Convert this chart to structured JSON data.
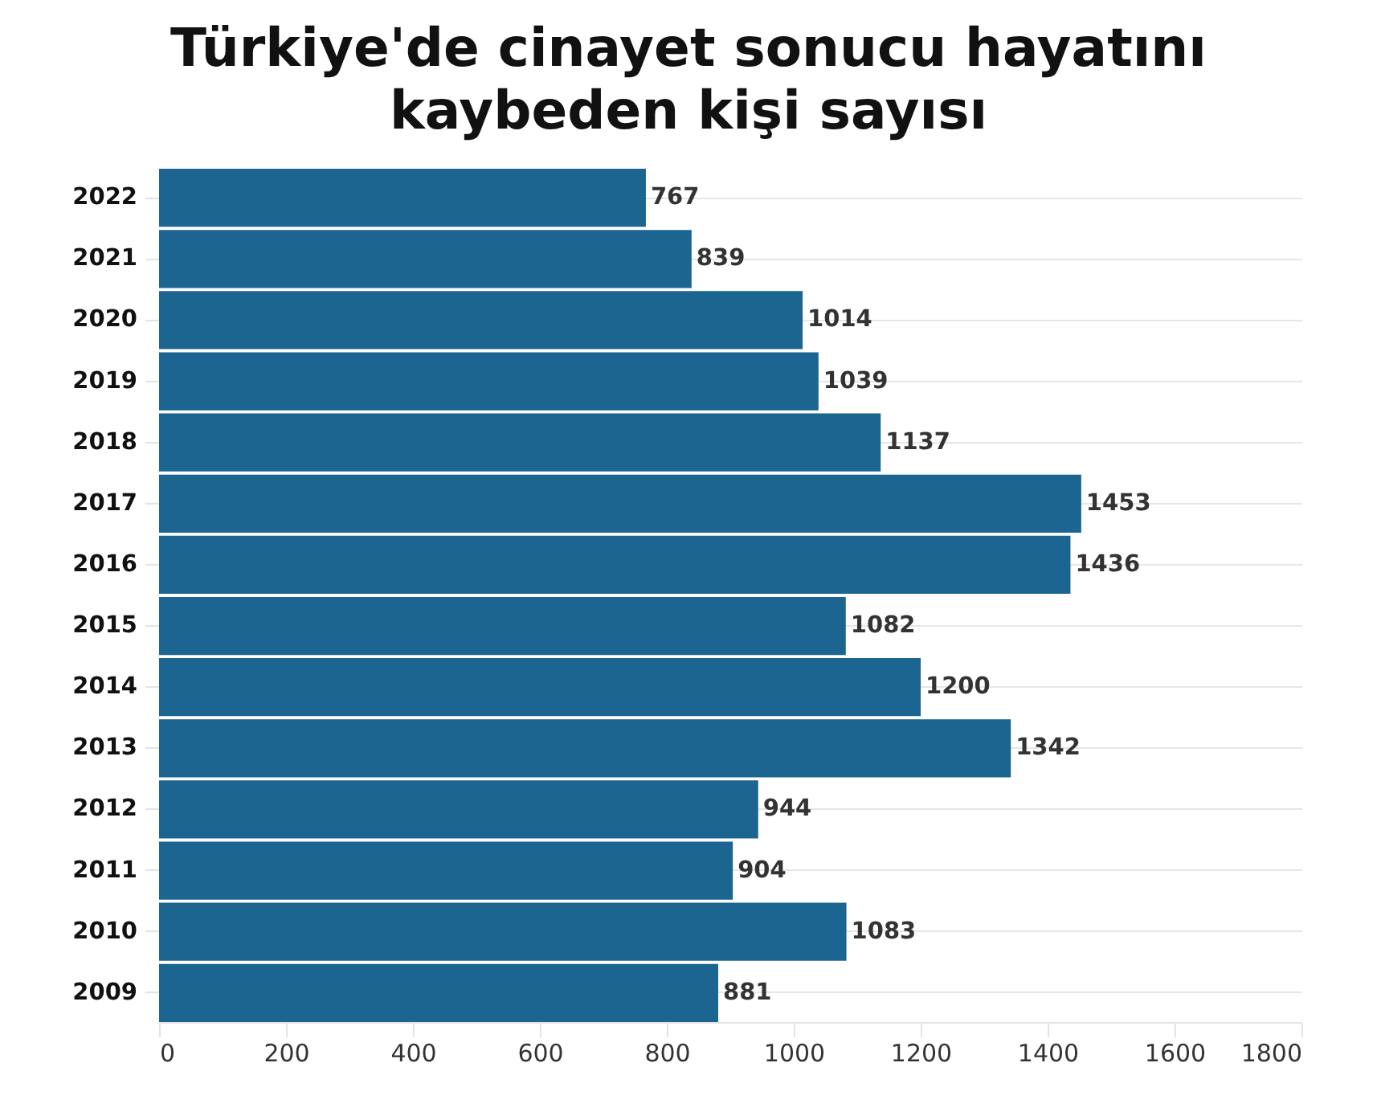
{
  "chart_data": {
    "type": "bar",
    "orientation": "horizontal",
    "title": "Türkiye'de cinayet sonucu hayatını\nkaybeden kişi sayısı",
    "categories": [
      "2022",
      "2021",
      "2020",
      "2019",
      "2018",
      "2017",
      "2016",
      "2015",
      "2014",
      "2013",
      "2012",
      "2011",
      "2010",
      "2009"
    ],
    "values": [
      767,
      839,
      1014,
      1039,
      1137,
      1453,
      1436,
      1082,
      1200,
      1342,
      944,
      904,
      1083,
      881
    ],
    "color": "#1b6590",
    "xlim": [
      0,
      1800
    ],
    "xticks": [
      0,
      200,
      400,
      600,
      800,
      1000,
      1200,
      1400,
      1600,
      1800
    ],
    "data_labels": true,
    "grid": "y"
  }
}
